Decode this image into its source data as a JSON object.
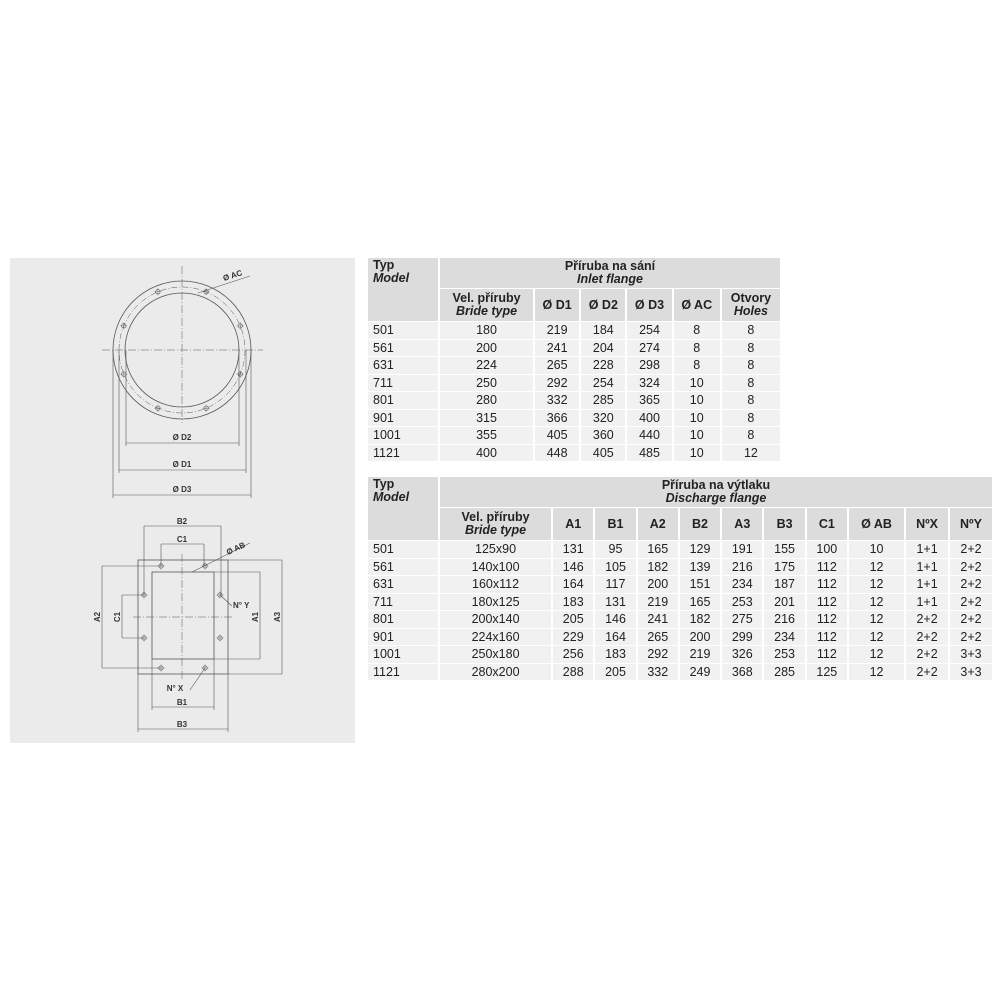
{
  "drawing": {
    "labels": {
      "ac": "Ø AC",
      "d2": "Ø D2",
      "d1": "Ø D1",
      "d3": "Ø D3",
      "b2": "B2",
      "c1_top": "C1",
      "ab": "Ø AB",
      "ny": "N° Y",
      "a2": "A2",
      "c1_side": "C1",
      "a1": "A1",
      "a3": "A3",
      "nx": "N° X",
      "b1": "B1",
      "b3": "B3"
    }
  },
  "inlet_table": {
    "model_label": "Typ",
    "model_label_en": "Model",
    "group_label": "Příruba na sání",
    "group_label_en": "Inlet flange",
    "columns": [
      {
        "label": "Vel. příruby",
        "label_en": "Bride type"
      },
      {
        "label": "Ø D1"
      },
      {
        "label": "Ø D2"
      },
      {
        "label": "Ø D3"
      },
      {
        "label": "Ø AC"
      },
      {
        "label": "Otvory",
        "label_en": "Holes"
      }
    ],
    "rows": [
      [
        "501",
        "180",
        "219",
        "184",
        "254",
        "8",
        "8"
      ],
      [
        "561",
        "200",
        "241",
        "204",
        "274",
        "8",
        "8"
      ],
      [
        "631",
        "224",
        "265",
        "228",
        "298",
        "8",
        "8"
      ],
      [
        "711",
        "250",
        "292",
        "254",
        "324",
        "10",
        "8"
      ],
      [
        "801",
        "280",
        "332",
        "285",
        "365",
        "10",
        "8"
      ],
      [
        "901",
        "315",
        "366",
        "320",
        "400",
        "10",
        "8"
      ],
      [
        "1001",
        "355",
        "405",
        "360",
        "440",
        "10",
        "8"
      ],
      [
        "1121",
        "400",
        "448",
        "405",
        "485",
        "10",
        "12"
      ]
    ]
  },
  "discharge_table": {
    "model_label": "Typ",
    "model_label_en": "Model",
    "group_label": "Příruba na výtlaku",
    "group_label_en": "Discharge flange",
    "columns": [
      {
        "label": "Vel. příruby",
        "label_en": "Bride type"
      },
      {
        "label": "A1"
      },
      {
        "label": "B1"
      },
      {
        "label": "A2"
      },
      {
        "label": "B2"
      },
      {
        "label": "A3"
      },
      {
        "label": "B3"
      },
      {
        "label": "C1"
      },
      {
        "label": "Ø AB"
      },
      {
        "label": "NºX"
      },
      {
        "label": "NºY"
      }
    ],
    "rows": [
      [
        "501",
        "125x90",
        "131",
        "95",
        "165",
        "129",
        "191",
        "155",
        "100",
        "10",
        "1+1",
        "2+2"
      ],
      [
        "561",
        "140x100",
        "146",
        "105",
        "182",
        "139",
        "216",
        "175",
        "112",
        "12",
        "1+1",
        "2+2"
      ],
      [
        "631",
        "160x112",
        "164",
        "117",
        "200",
        "151",
        "234",
        "187",
        "112",
        "12",
        "1+1",
        "2+2"
      ],
      [
        "711",
        "180x125",
        "183",
        "131",
        "219",
        "165",
        "253",
        "201",
        "112",
        "12",
        "1+1",
        "2+2"
      ],
      [
        "801",
        "200x140",
        "205",
        "146",
        "241",
        "182",
        "275",
        "216",
        "112",
        "12",
        "2+2",
        "2+2"
      ],
      [
        "901",
        "224x160",
        "229",
        "164",
        "265",
        "200",
        "299",
        "234",
        "112",
        "12",
        "2+2",
        "2+2"
      ],
      [
        "1001",
        "250x180",
        "256",
        "183",
        "292",
        "219",
        "326",
        "253",
        "112",
        "12",
        "2+2",
        "3+3"
      ],
      [
        "1121",
        "280x200",
        "288",
        "205",
        "332",
        "249",
        "368",
        "285",
        "125",
        "12",
        "2+2",
        "3+3"
      ]
    ]
  }
}
